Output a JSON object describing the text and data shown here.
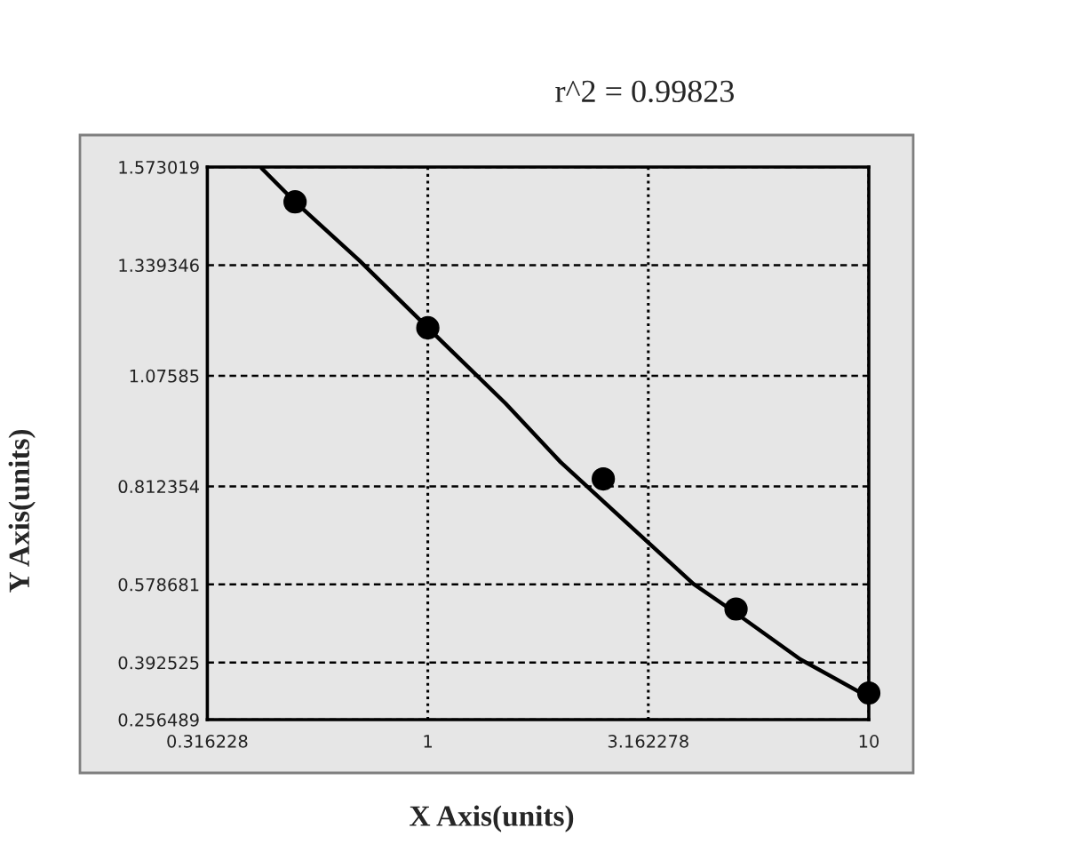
{
  "chart_data": {
    "type": "scatter",
    "title": "r^2 = 0.99823",
    "xlabel": "X Axis(units)",
    "ylabel": "Y Axis(units)",
    "series": [
      {
        "type": "scatter",
        "color": "#000000",
        "marker": "circle",
        "x": [
          0.5,
          1,
          2.5,
          5,
          10
        ],
        "values": [
          1.49,
          1.19,
          0.83,
          0.52,
          0.32
        ]
      },
      {
        "type": "line",
        "color": "#000000",
        "marker": "none",
        "line_style": "solid",
        "x": [
          0.42,
          0.5,
          0.7,
          1,
          1.5,
          2,
          3,
          4,
          5,
          7,
          10
        ],
        "values": [
          1.57,
          1.49,
          1.35,
          1.19,
          1.01,
          0.87,
          0.7,
          0.58,
          0.51,
          0.4,
          0.31
        ]
      }
    ],
    "log": "x",
    "xlim": [
      0.316228,
      10
    ],
    "xticks": [
      0.316228,
      1,
      3.162278,
      10
    ],
    "ylim": [
      0.256489,
      1.573019
    ],
    "yticks": [
      0.256489,
      0.392525,
      0.578681,
      0.812354,
      1.07585,
      1.339346,
      1.573019
    ],
    "grid": true
  }
}
